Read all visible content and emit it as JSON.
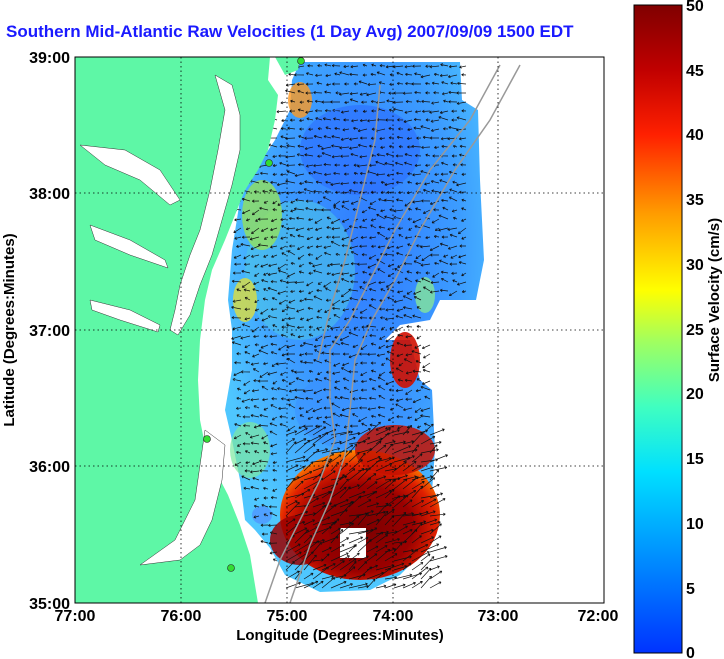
{
  "title": "Southern Mid-Atlantic Raw Velocities (1 Day Avg) 2007/09/09 1500 EDT",
  "xlabel": "Longitude (Degrees:Minutes)",
  "ylabel": "Latitude (Degrees:Minutes)",
  "colorbar_label": "Surface Velocity (cm/s)",
  "x_ticks": [
    "77:00",
    "76:00",
    "75:00",
    "74:00",
    "73:00",
    "72:00"
  ],
  "y_ticks": [
    "39:00",
    "38:00",
    "37:00",
    "36:00",
    "35:00"
  ],
  "colorbar_ticks": [
    "50",
    "45",
    "40",
    "35",
    "30",
    "25",
    "20",
    "15",
    "10",
    "5",
    "0"
  ],
  "colors": {
    "land": "#5ef7a6",
    "grid": "#000000",
    "title": "#1a1aff"
  },
  "chart_data": {
    "type": "heatmap",
    "xlim": [
      -77,
      -72
    ],
    "ylim": [
      35,
      39
    ],
    "clim": [
      0,
      50
    ],
    "grid": true,
    "colormap": "jet"
  }
}
